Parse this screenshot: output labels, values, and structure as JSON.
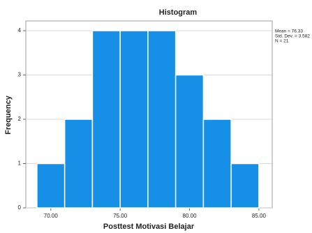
{
  "chart_data": {
    "type": "histogram",
    "title": "Histogram",
    "x_label": "Posttest Motivasi Belajar",
    "y_label": "Frequency",
    "bins": [
      69,
      71,
      73,
      75,
      77,
      79,
      81,
      83,
      85
    ],
    "values": [
      1,
      2,
      4,
      4,
      4,
      3,
      2,
      1
    ],
    "color": "#1690e6",
    "xlim": [
      68.2,
      85.96
    ],
    "xticks": [
      {
        "value": 70,
        "label": "70.00"
      },
      {
        "value": 75,
        "label": "75.00"
      },
      {
        "value": 80,
        "label": "80.00"
      },
      {
        "value": 85,
        "label": "85.00"
      }
    ],
    "ylim": [
      0,
      4.22
    ],
    "yticks": [
      0,
      1,
      2,
      3,
      4
    ],
    "grid": true,
    "stats": [
      "Mean = 76.33",
      "Std. Dev. = 3.582",
      "N = 21"
    ]
  }
}
